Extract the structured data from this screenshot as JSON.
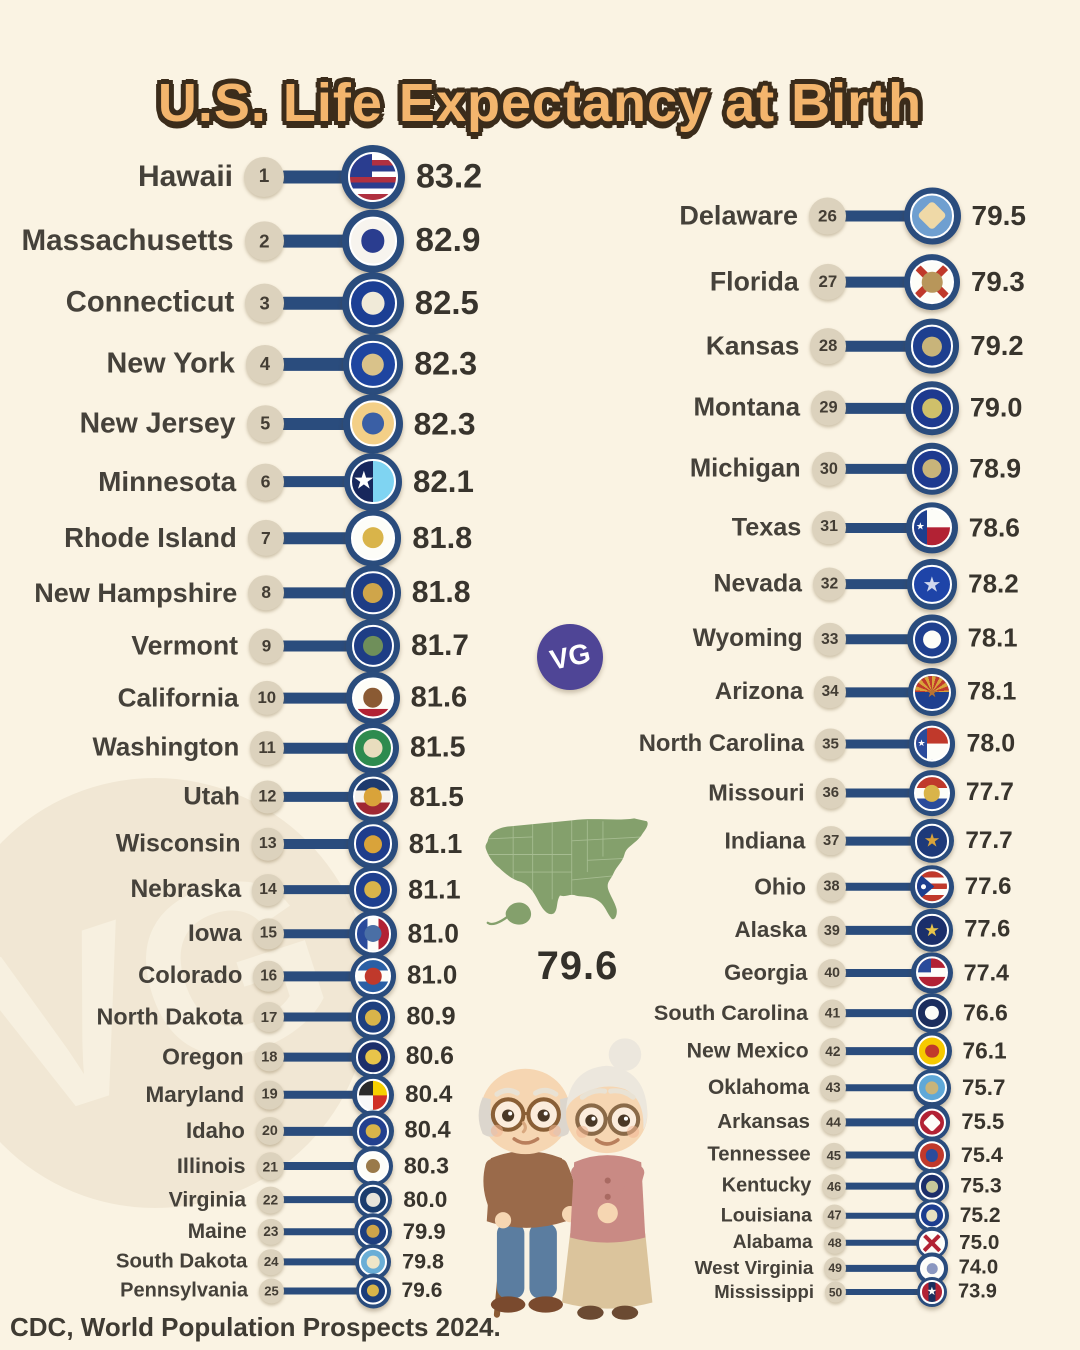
{
  "title": "U.S. Life Expectancy at Birth",
  "source_note": "CDC, World Population Prospects 2024.",
  "logo_text": "VG",
  "colors": {
    "background": "#faf3e3",
    "title_fill": "#f3b56d",
    "title_outline": "#3b2c1b",
    "navy_line": "#2a4c7d",
    "rank_badge_fill": "#dcd2bd",
    "name_text": "#45413a",
    "value_text": "#38342d",
    "logo_purple": "#4f4596",
    "map_green": "#84a06c"
  },
  "chart_data": {
    "type": "bar",
    "title": "U.S. Life Expectancy at Birth",
    "unit": "years (life expectancy at birth)",
    "national_average": 79.6,
    "national_average_label": "79.6",
    "source": "CDC, World Population Prospects 2024.",
    "legend_position": "none",
    "states": [
      {
        "rank": 1,
        "state": "Hawaii",
        "value": 83.2,
        "label": "83.2",
        "flag": {
          "kind": "canton",
          "colors": [
            "#ffffff",
            "#b03040",
            "#2a3d8f",
            "#ffffff",
            "#b03040",
            "#2a3d8f",
            "#ffffff",
            "#b03040"
          ],
          "canton": "#2a3d8f",
          "emblem": null,
          "shape": "circle"
        }
      },
      {
        "rank": 2,
        "state": "Massachusetts",
        "value": 82.9,
        "label": "82.9",
        "flag": {
          "kind": "solid",
          "colors": [
            "#f7f4ee"
          ],
          "emblem": "#2a3d8f",
          "shape": "circle"
        }
      },
      {
        "rank": 3,
        "state": "Connecticut",
        "value": 82.5,
        "label": "82.5",
        "flag": {
          "kind": "solid",
          "colors": [
            "#1c3f94"
          ],
          "emblem": "#f0ead8",
          "shape": "circle"
        }
      },
      {
        "rank": 4,
        "state": "New York",
        "value": 82.3,
        "label": "82.3",
        "flag": {
          "kind": "solid",
          "colors": [
            "#1e45a0"
          ],
          "emblem": "#d9c28a",
          "shape": "circle"
        }
      },
      {
        "rank": 5,
        "state": "New Jersey",
        "value": 82.3,
        "label": "82.3",
        "flag": {
          "kind": "solid",
          "colors": [
            "#f3cf87"
          ],
          "emblem": "#3a5fa5",
          "shape": "circle"
        }
      },
      {
        "rank": 6,
        "state": "Minnesota",
        "value": 82.1,
        "label": "82.1",
        "flag": {
          "kind": "split",
          "colors": [
            "#17275c",
            "#7fd4f2"
          ],
          "emblem": "#ffffff",
          "shape": "star"
        }
      },
      {
        "rank": 7,
        "state": "Rhode Island",
        "value": 81.8,
        "label": "81.8",
        "flag": {
          "kind": "solid",
          "colors": [
            "#fdfdf8"
          ],
          "emblem": "#d9b44a",
          "shape": "circle"
        }
      },
      {
        "rank": 8,
        "state": "New Hampshire",
        "value": 81.8,
        "label": "81.8",
        "flag": {
          "kind": "solid",
          "colors": [
            "#1e3d85"
          ],
          "emblem": "#cfa54a",
          "shape": "circle"
        }
      },
      {
        "rank": 9,
        "state": "Vermont",
        "value": 81.7,
        "label": "81.7",
        "flag": {
          "kind": "solid",
          "colors": [
            "#1e3d85"
          ],
          "emblem": "#6f8f5a",
          "shape": "circle"
        }
      },
      {
        "rank": 10,
        "state": "California",
        "value": 81.6,
        "label": "81.6",
        "flag": {
          "kind": "h",
          "colors": [
            "#fdfdf8",
            "#fdfdf8",
            "#fdfdf8",
            "#fdfdf8",
            "#b22234"
          ],
          "emblem": "#8a5a33",
          "shape": "circle"
        }
      },
      {
        "rank": 11,
        "state": "Washington",
        "value": 81.5,
        "label": "81.5",
        "flag": {
          "kind": "solid",
          "colors": [
            "#2e8b4f"
          ],
          "emblem": "#e9ddbe",
          "shape": "circle"
        }
      },
      {
        "rank": 12,
        "state": "Utah",
        "value": 81.5,
        "label": "81.5",
        "flag": {
          "kind": "h",
          "colors": [
            "#1e3a6e",
            "#f5f2ec",
            "#a02833"
          ],
          "emblem": "#d9a33a",
          "shape": "circle"
        }
      },
      {
        "rank": 13,
        "state": "Wisconsin",
        "value": 81.1,
        "label": "81.1",
        "flag": {
          "kind": "solid",
          "colors": [
            "#1f3d8c"
          ],
          "emblem": "#d9a33a",
          "shape": "circle"
        }
      },
      {
        "rank": 14,
        "state": "Nebraska",
        "value": 81.1,
        "label": "81.1",
        "flag": {
          "kind": "solid",
          "colors": [
            "#1e3f8f"
          ],
          "emblem": "#d9b44a",
          "shape": "circle"
        }
      },
      {
        "rank": 15,
        "state": "Iowa",
        "value": 81.0,
        "label": "81.0",
        "flag": {
          "kind": "v",
          "colors": [
            "#2a4b9b",
            "#fdfdf8",
            "#b22234"
          ],
          "emblem": "#4a6fa5",
          "shape": "circle"
        }
      },
      {
        "rank": 16,
        "state": "Colorado",
        "value": 81.0,
        "label": "81.0",
        "flag": {
          "kind": "h",
          "colors": [
            "#2a5fa5",
            "#fdfdf8",
            "#2a5fa5"
          ],
          "emblem": "#c0392b",
          "shape": "circle"
        }
      },
      {
        "rank": 17,
        "state": "North Dakota",
        "value": 80.9,
        "label": "80.9",
        "flag": {
          "kind": "solid",
          "colors": [
            "#1e3f7f"
          ],
          "emblem": "#d9b44a",
          "shape": "circle"
        }
      },
      {
        "rank": 18,
        "state": "Oregon",
        "value": 80.6,
        "label": "80.6",
        "flag": {
          "kind": "solid",
          "colors": [
            "#1c2f6b"
          ],
          "emblem": "#e8c44a",
          "shape": "circle"
        }
      },
      {
        "rank": 19,
        "state": "Maryland",
        "value": 80.4,
        "label": "80.4",
        "flag": {
          "kind": "quarter",
          "colors": [
            "#f5d000",
            "#d03027",
            "#f8f8f8",
            "#2b2b2b"
          ],
          "emblem": null,
          "shape": "circle"
        }
      },
      {
        "rank": 20,
        "state": "Idaho",
        "value": 80.4,
        "label": "80.4",
        "flag": {
          "kind": "solid",
          "colors": [
            "#23408f"
          ],
          "emblem": "#d9b44a",
          "shape": "circle"
        }
      },
      {
        "rank": 21,
        "state": "Illinois",
        "value": 80.3,
        "label": "80.3",
        "flag": {
          "kind": "solid",
          "colors": [
            "#fdfdf8"
          ],
          "emblem": "#9a7a4a",
          "shape": "circle"
        }
      },
      {
        "rank": 22,
        "state": "Virginia",
        "value": 80.0,
        "label": "80.0",
        "flag": {
          "kind": "solid",
          "colors": [
            "#1b3d6e"
          ],
          "emblem": "#e8e4da",
          "shape": "circle"
        }
      },
      {
        "rank": 23,
        "state": "Maine",
        "value": 79.9,
        "label": "79.9",
        "flag": {
          "kind": "solid",
          "colors": [
            "#1e3f7f"
          ],
          "emblem": "#cfa54a",
          "shape": "circle"
        }
      },
      {
        "rank": 24,
        "state": "South Dakota",
        "value": 79.8,
        "label": "79.8",
        "flag": {
          "kind": "solid",
          "colors": [
            "#6aaed6"
          ],
          "emblem": "#efe6c8",
          "shape": "circle"
        }
      },
      {
        "rank": 25,
        "state": "Pennsylvania",
        "value": 79.6,
        "label": "79.6",
        "flag": {
          "kind": "solid",
          "colors": [
            "#1c3d7a"
          ],
          "emblem": "#d9b44a",
          "shape": "circle"
        }
      },
      {
        "rank": 26,
        "state": "Delaware",
        "value": 79.5,
        "label": "79.5",
        "flag": {
          "kind": "solid",
          "colors": [
            "#6f9fd0"
          ],
          "emblem": "#efd9a7",
          "shape": "diamond"
        }
      },
      {
        "rank": 27,
        "state": "Florida",
        "value": 79.3,
        "label": "79.3",
        "flag": {
          "kind": "saltire",
          "colors": [
            "#fdfdf8",
            "#c0392b"
          ],
          "emblem": "#b8965a",
          "shape": "circle"
        }
      },
      {
        "rank": 28,
        "state": "Kansas",
        "value": 79.2,
        "label": "79.2",
        "flag": {
          "kind": "solid",
          "colors": [
            "#1e3f8f"
          ],
          "emblem": "#c8b47a",
          "shape": "circle"
        }
      },
      {
        "rank": 29,
        "state": "Montana",
        "value": 79.0,
        "label": "79.0",
        "flag": {
          "kind": "solid",
          "colors": [
            "#1e3a8f"
          ],
          "emblem": "#cfc06a",
          "shape": "circle"
        }
      },
      {
        "rank": 30,
        "state": "Michigan",
        "value": 78.9,
        "label": "78.9",
        "flag": {
          "kind": "solid",
          "colors": [
            "#1e3a8f"
          ],
          "emblem": "#c8b47a",
          "shape": "circle"
        }
      },
      {
        "rank": 31,
        "state": "Texas",
        "value": 78.6,
        "label": "78.6",
        "flag": {
          "kind": "texas",
          "colors": [
            "#1e3f8f",
            "#fdfdf8",
            "#b22234"
          ],
          "emblem": null,
          "shape": "circle"
        }
      },
      {
        "rank": 32,
        "state": "Nevada",
        "value": 78.2,
        "label": "78.2",
        "flag": {
          "kind": "solid",
          "colors": [
            "#1e44a8"
          ],
          "emblem": "#d0d8ee",
          "shape": "star"
        }
      },
      {
        "rank": 33,
        "state": "Wyoming",
        "value": 78.1,
        "label": "78.1",
        "flag": {
          "kind": "solid",
          "colors": [
            "#1e3f8f"
          ],
          "emblem": "#fdfdf8",
          "shape": "circle"
        }
      },
      {
        "rank": 34,
        "state": "Arizona",
        "value": 78.1,
        "label": "78.1",
        "flag": {
          "kind": "az",
          "colors": [
            "#c0392b",
            "#d9a33a",
            "#1e3f8f",
            "#b87333"
          ],
          "emblem": null,
          "shape": "circle"
        }
      },
      {
        "rank": 35,
        "state": "North Carolina",
        "value": 78.0,
        "label": "78.0",
        "flag": {
          "kind": "texas",
          "colors": [
            "#2a4b9b",
            "#c0392b",
            "#fdfdf8"
          ],
          "emblem": null,
          "shape": "circle"
        }
      },
      {
        "rank": 36,
        "state": "Missouri",
        "value": 77.7,
        "label": "77.7",
        "flag": {
          "kind": "h",
          "colors": [
            "#c0392b",
            "#fdfdf8",
            "#2a4b9b"
          ],
          "emblem": "#d9b44a",
          "shape": "circle"
        }
      },
      {
        "rank": 37,
        "state": "Indiana",
        "value": 77.7,
        "label": "77.7",
        "flag": {
          "kind": "solid",
          "colors": [
            "#1e3a7a"
          ],
          "emblem": "#d9a33a",
          "shape": "star"
        }
      },
      {
        "rank": 38,
        "state": "Ohio",
        "value": 77.6,
        "label": "77.6",
        "flag": {
          "kind": "burgee",
          "colors": [
            "#c0392b",
            "#fdfdf8",
            "#1e3f8f"
          ],
          "emblem": null,
          "shape": "circle"
        }
      },
      {
        "rank": 39,
        "state": "Alaska",
        "value": 77.6,
        "label": "77.6",
        "flag": {
          "kind": "solid",
          "colors": [
            "#1b2f6b"
          ],
          "emblem": "#e8c44a",
          "shape": "star"
        }
      },
      {
        "rank": 40,
        "state": "Georgia",
        "value": 77.4,
        "label": "77.4",
        "flag": {
          "kind": "canton",
          "colors": [
            "#b22234",
            "#fdfdf8",
            "#b22234"
          ],
          "canton": "#2a4b9b",
          "emblem": null,
          "shape": "circle"
        }
      },
      {
        "rank": 41,
        "state": "South Carolina",
        "value": 76.6,
        "label": "76.6",
        "flag": {
          "kind": "solid",
          "colors": [
            "#1c2e5e"
          ],
          "emblem": "#fdfdf8",
          "shape": "circle"
        }
      },
      {
        "rank": 42,
        "state": "New Mexico",
        "value": 76.1,
        "label": "76.1",
        "flag": {
          "kind": "solid",
          "colors": [
            "#f6c900"
          ],
          "emblem": "#c0392b",
          "shape": "circle"
        }
      },
      {
        "rank": 43,
        "state": "Oklahoma",
        "value": 75.7,
        "label": "75.7",
        "flag": {
          "kind": "solid",
          "colors": [
            "#5fa8d8"
          ],
          "emblem": "#c8b47a",
          "shape": "circle"
        }
      },
      {
        "rank": 44,
        "state": "Arkansas",
        "value": 75.5,
        "label": "75.5",
        "flag": {
          "kind": "solid",
          "colors": [
            "#b22234"
          ],
          "emblem": "#fdfdf8",
          "shape": "diamond"
        }
      },
      {
        "rank": 45,
        "state": "Tennessee",
        "value": 75.4,
        "label": "75.4",
        "flag": {
          "kind": "solid",
          "colors": [
            "#c0392b"
          ],
          "emblem": "#2a4b9b",
          "shape": "circle"
        }
      },
      {
        "rank": 46,
        "state": "Kentucky",
        "value": 75.3,
        "label": "75.3",
        "flag": {
          "kind": "solid",
          "colors": [
            "#1c2f6b"
          ],
          "emblem": "#c8c89a",
          "shape": "circle"
        }
      },
      {
        "rank": 47,
        "state": "Louisiana",
        "value": 75.2,
        "label": "75.2",
        "flag": {
          "kind": "solid",
          "colors": [
            "#1c3d8f"
          ],
          "emblem": "#e8e0c0",
          "shape": "circle"
        }
      },
      {
        "rank": 48,
        "state": "Alabama",
        "value": 75.0,
        "label": "75.0",
        "flag": {
          "kind": "saltire",
          "colors": [
            "#fdfdf8",
            "#b22234"
          ],
          "emblem": null,
          "shape": "circle"
        }
      },
      {
        "rank": 49,
        "state": "West Virginia",
        "value": 74.0,
        "label": "74.0",
        "flag": {
          "kind": "solid",
          "colors": [
            "#fdfdf8"
          ],
          "emblem": "#8a97c0",
          "shape": "circle"
        }
      },
      {
        "rank": 50,
        "state": "Mississippi",
        "value": 73.9,
        "label": "73.9",
        "flag": {
          "kind": "v",
          "colors": [
            "#b22234",
            "#1a2f5e",
            "#b22234"
          ],
          "emblem": "#fdfdf8",
          "shape": "star"
        }
      }
    ]
  }
}
